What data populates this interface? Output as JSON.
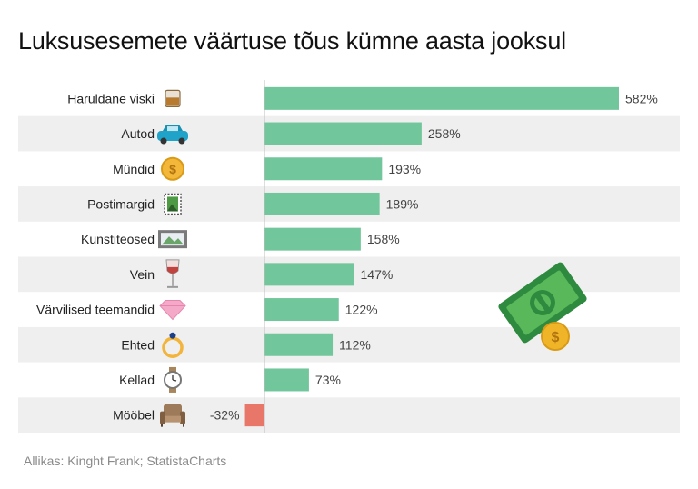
{
  "title": "Luksusesemete väärtuse tõus kümne aasta jooksul",
  "source": "Allikas: Kinght Frank; StatistaCharts",
  "chart_data": {
    "type": "bar",
    "orientation": "horizontal",
    "title": "Luksusesemete väärtuse tõus kümne aasta jooksul",
    "xlabel": "",
    "ylabel": "",
    "unit": "%",
    "grid": false,
    "categories": [
      "Haruldane viski",
      "Autod",
      "Mündid",
      "Postimargid",
      "Kunstiteosed",
      "Vein",
      "Värvilised teemandid",
      "Ehted",
      "Kellad",
      "Mööbel"
    ],
    "values": [
      582,
      258,
      193,
      189,
      158,
      147,
      122,
      112,
      73,
      -32
    ],
    "value_labels": [
      "582%",
      "258%",
      "193%",
      "189%",
      "158%",
      "147%",
      "122%",
      "112%",
      "73%",
      "-32%"
    ],
    "icons": [
      "whisky-glass-icon",
      "car-icon",
      "coin-icon",
      "stamp-icon",
      "painting-icon",
      "wine-glass-icon",
      "diamond-icon",
      "ring-icon",
      "watch-icon",
      "armchair-icon"
    ],
    "colors": {
      "positive": "#72c69b",
      "negative": "#e8776a",
      "stripe": "#efefef"
    }
  },
  "decoration": {
    "icon": "money-bill-coin-icon"
  }
}
